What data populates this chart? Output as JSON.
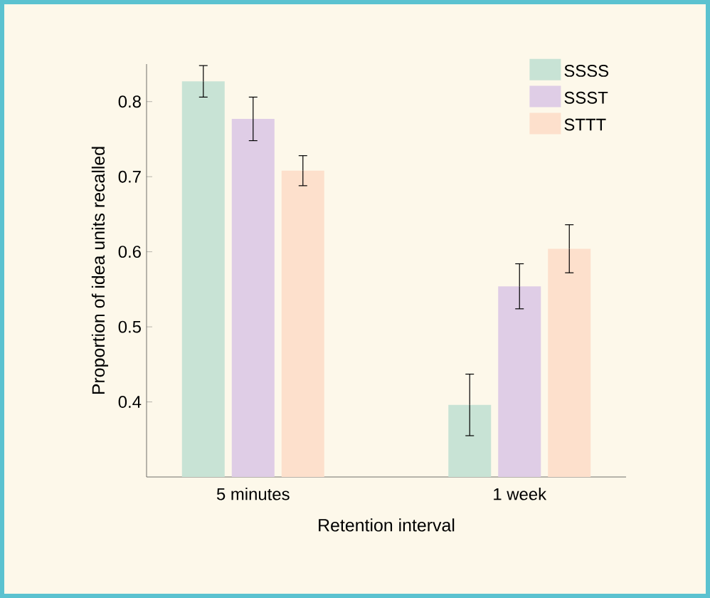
{
  "chart_data": {
    "type": "bar",
    "xlabel": "Retention interval",
    "ylabel": "Proportion of idea units recalled",
    "categories": [
      "5 minutes",
      "1 week"
    ],
    "series": [
      {
        "name": "SSSS",
        "color": "#c8e3d5",
        "values": [
          0.827,
          0.396
        ],
        "errors": [
          0.021,
          0.041
        ]
      },
      {
        "name": "SSST",
        "color": "#dfcde6",
        "values": [
          0.777,
          0.554
        ],
        "errors": [
          0.029,
          0.03
        ]
      },
      {
        "name": "STTT",
        "color": "#fde0cc",
        "values": [
          0.708,
          0.604
        ],
        "errors": [
          0.02,
          0.032
        ]
      }
    ],
    "ylim": [
      0.3,
      0.85
    ],
    "yticks": [
      0.4,
      0.5,
      0.6,
      0.7,
      0.8
    ],
    "grid": false,
    "legend": "top right"
  }
}
